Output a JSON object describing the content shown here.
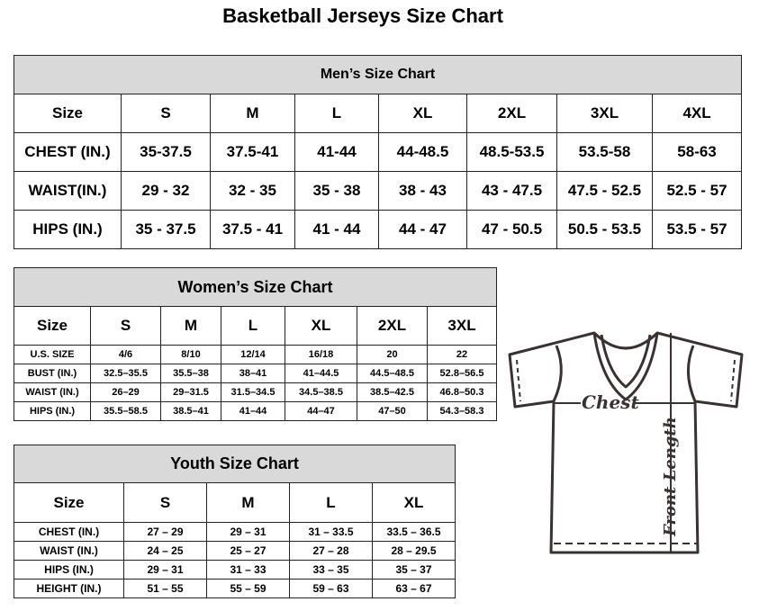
{
  "title": "Basketball Jerseys Size Chart",
  "men": {
    "title": "Men’s Size Chart",
    "header": [
      "Size",
      "S",
      "M",
      "L",
      "XL",
      "2XL",
      "3XL",
      "4XL"
    ],
    "rows": [
      [
        "CHEST (IN.)",
        "35-37.5",
        "37.5-41",
        "41-44",
        "44-48.5",
        "48.5-53.5",
        "53.5-58",
        "58-63"
      ],
      [
        "WAIST(IN.)",
        "29 - 32",
        "32 - 35",
        "35 - 38",
        "38 - 43",
        "43 - 47.5",
        "47.5 - 52.5",
        "52.5 - 57"
      ],
      [
        "HIPS (IN.)",
        "35 - 37.5",
        "37.5 - 41",
        "41 - 44",
        "44 - 47",
        "47 - 50.5",
        "50.5 - 53.5",
        "53.5 - 57"
      ]
    ]
  },
  "women": {
    "title": "Women’s Size Chart",
    "header": [
      "Size",
      "S",
      "M",
      "L",
      "XL",
      "2XL",
      "3XL"
    ],
    "rows": [
      [
        "U.S. SIZE",
        "4/6",
        "8/10",
        "12/14",
        "16/18",
        "20",
        "22"
      ],
      [
        "BUST (IN.)",
        "32.5–35.5",
        "35.5–38",
        "38–41",
        "41–44.5",
        "44.5–48.5",
        "52.8–56.5"
      ],
      [
        "WAIST (IN.)",
        "26–29",
        "29–31.5",
        "31.5–34.5",
        "34.5–38.5",
        "38.5–42.5",
        "46.8–50.3"
      ],
      [
        "HIPS (IN.)",
        "35.5–58.5",
        "38.5–41",
        "41–44",
        "44–47",
        "47–50",
        "54.3–58.3"
      ]
    ]
  },
  "youth": {
    "title": "Youth Size Chart",
    "header": [
      "Size",
      "S",
      "M",
      "L",
      "XL"
    ],
    "rows": [
      [
        "CHEST (IN.)",
        "27 – 29",
        "29 – 31",
        "31 – 33.5",
        "33.5 – 36.5"
      ],
      [
        "WAIST (IN.)",
        "24 – 25",
        "25 – 27",
        "27 – 28",
        "28 – 29.5"
      ],
      [
        "HIPS (IN.)",
        "29 – 31",
        "31 – 33",
        "33 – 35",
        "35 – 37"
      ],
      [
        "HEIGHT (IN.)",
        "51 – 55",
        "55 – 59",
        "59 – 63",
        "63 – 67"
      ]
    ]
  },
  "diagram": {
    "chest_label": "Chest",
    "length_label": "Front Length",
    "icon": "t-shirt-icon"
  }
}
